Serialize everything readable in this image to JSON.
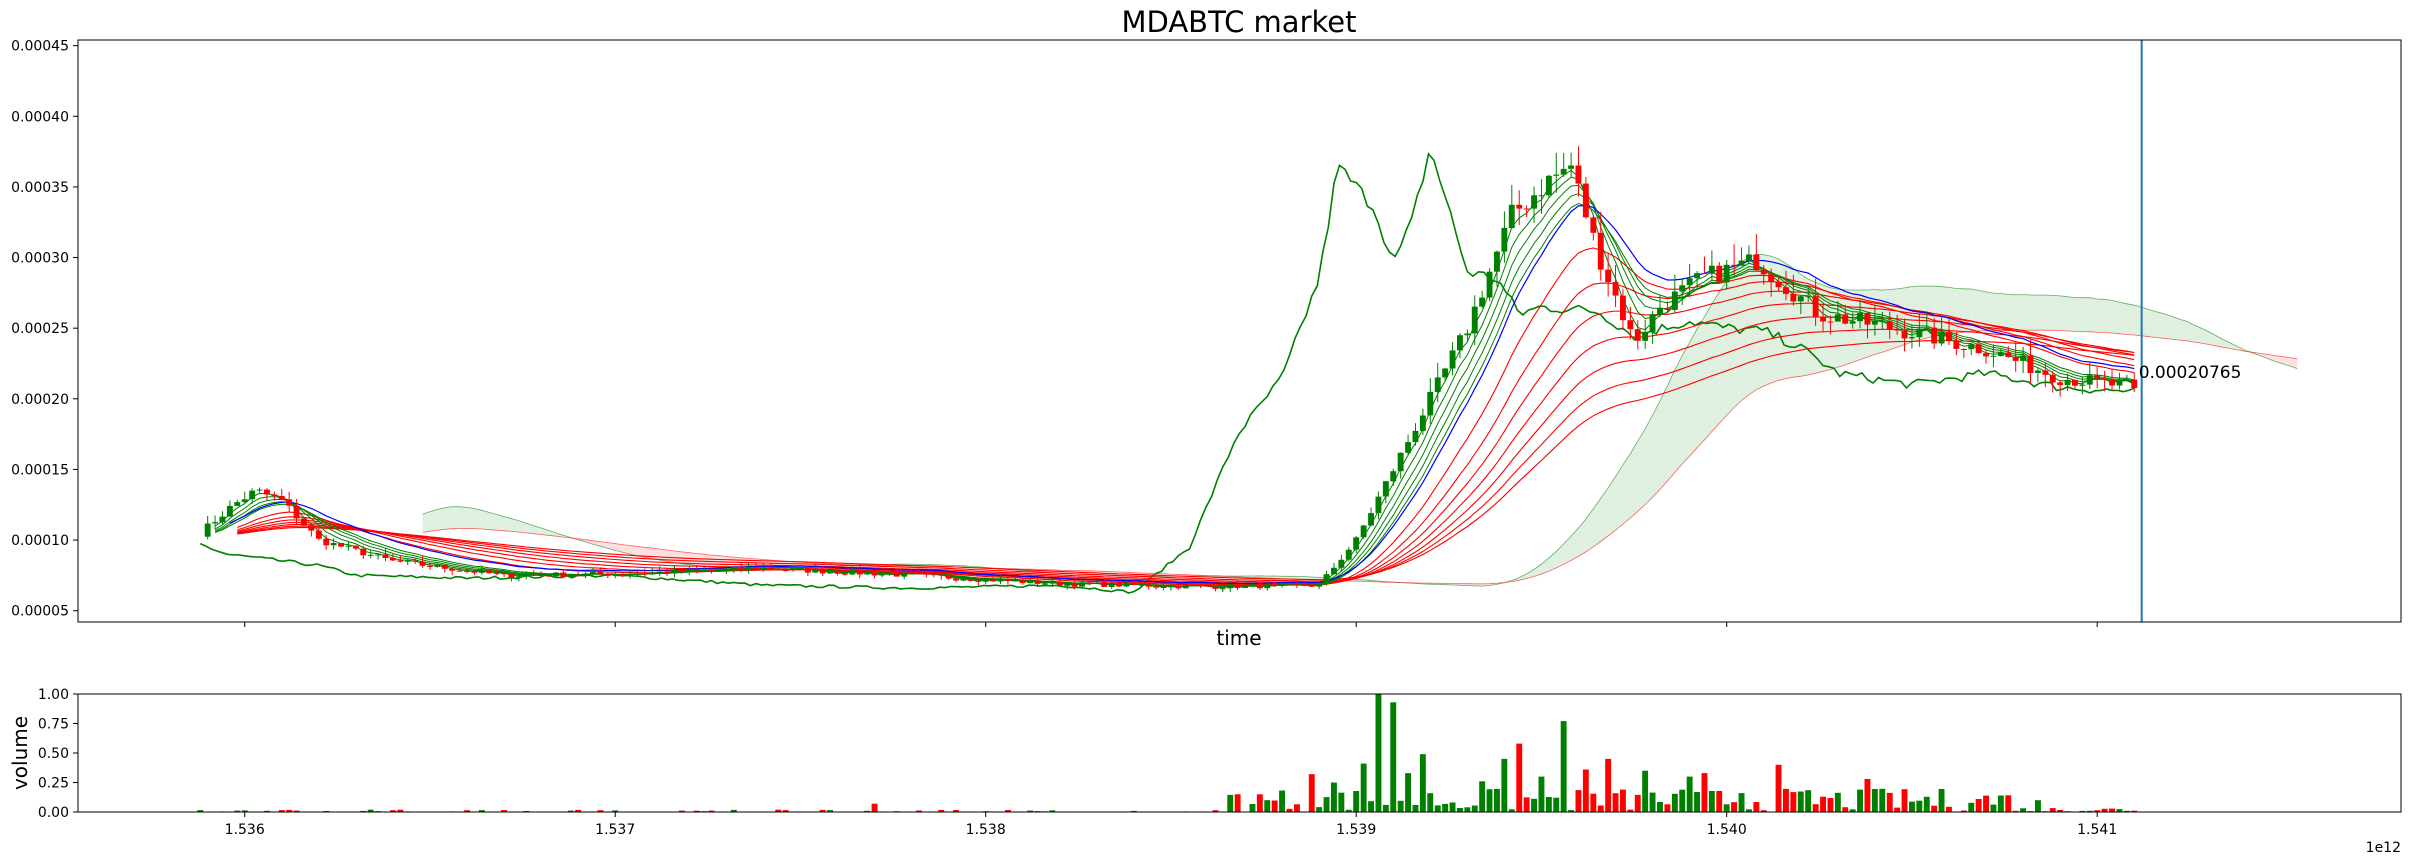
{
  "chart_data": [
    {
      "type": "candlestick",
      "title": "MDABTC market",
      "xlabel": "time",
      "ylabel": "",
      "xlim": [
        1535550000000,
        1541820000000
      ],
      "ylim": [
        4.2e-05,
        0.000454
      ],
      "x_ticks": [
        1536000000000,
        1537000000000,
        1538000000000,
        1539000000000,
        1540000000000,
        1541000000000
      ],
      "y_ticks": [
        5e-05,
        0.0001,
        0.00015,
        0.0002,
        0.00025,
        0.0003,
        0.00035,
        0.0004,
        0.00045
      ],
      "y_tick_labels": [
        "0.00005",
        "0.00010",
        "0.00015",
        "0.00020",
        "0.00025",
        "0.00030",
        "0.00035",
        "0.00040",
        "0.00045"
      ],
      "last_price_label": "0.00020765",
      "last_price": 0.00020765,
      "current_time_marker": 1541120000000,
      "colors": {
        "up": "#008000",
        "down": "#ff0000",
        "short_ma": "#0000ff",
        "marker": "#1f77b4",
        "cloud_up": "#cce6cc",
        "cloud_down": "#ffcccc"
      },
      "price_keypoints": {
        "t": [
          1535880000000,
          1535970000000,
          1536030000000,
          1536100000000,
          1536200000000,
          1536400000000,
          1536700000000,
          1537000000000,
          1537400000000,
          1537800000000,
          1538200000000,
          1538600000000,
          1538900000000,
          1539000000000,
          1539150000000,
          1539300000000,
          1539420000000,
          1539520000000,
          1539580000000,
          1539650000000,
          1539750000000,
          1539820000000,
          1539930000000,
          1540080000000,
          1540250000000,
          1540450000000,
          1540700000000,
          1540900000000,
          1541100000000
        ],
        "p": [
          0.000105,
          0.000125,
          0.000135,
          0.000128,
          0.0001,
          8.5e-05,
          7.5e-05,
          7.6e-05,
          8e-05,
          7.5e-05,
          6.9e-05,
          6.7e-05,
          6.8e-05,
          0.0001,
          0.000175,
          0.00025,
          0.00033,
          0.000355,
          0.000365,
          0.000305,
          0.00024,
          0.000265,
          0.000285,
          0.000298,
          0.00026,
          0.00025,
          0.000235,
          0.000215,
          0.000208
        ]
      },
      "lagging_line": {
        "t": [
          1535880000000,
          1535950000000,
          1536200000000,
          1536300000000,
          1536600000000,
          1537000000000,
          1537400000000,
          1537800000000,
          1538000000000,
          1538200000000,
          1538400000000,
          1538550000000,
          1538680000000,
          1538800000000,
          1538900000000,
          1538950000000,
          1539050000000,
          1539100000000,
          1539150000000,
          1539200000000,
          1539300000000,
          1539380000000,
          1539440000000,
          1539500000000,
          1539650000000,
          1539750000000,
          1539900000000,
          1540000000000,
          1540100000000,
          1540200000000,
          1540300000000,
          1540500000000,
          1540700000000,
          1540900000000,
          1541100000000
        ],
        "p": [
          9.7e-05,
          9e-05,
          8.2e-05,
          7.5e-05,
          7.3e-05,
          7.5e-05,
          6.8e-05,
          6.6e-05,
          6.7e-05,
          6.8e-05,
          6.3e-05,
          9.5e-05,
          0.000175,
          0.000215,
          0.000285,
          0.000365,
          0.000335,
          0.000295,
          0.000325,
          0.000378,
          0.00029,
          0.000285,
          0.00026,
          0.000265,
          0.000262,
          0.000245,
          0.000255,
          0.00025,
          0.000248,
          0.000236,
          0.000218,
          0.00021,
          0.000218,
          0.000208,
          0.000205
        ]
      }
    },
    {
      "type": "bar",
      "xlabel": "",
      "ylabel": "volume",
      "ylim": [
        0,
        1.0
      ],
      "y_ticks": [
        0,
        0.25,
        0.5,
        0.75,
        1.0
      ],
      "y_tick_labels": [
        "0.00",
        "0.25",
        "0.50",
        "0.75",
        "1.00"
      ],
      "x_ticks": [
        1536000000000,
        1537000000000,
        1538000000000,
        1539000000000,
        1540000000000,
        1541000000000
      ],
      "x_tick_labels": [
        "1.536",
        "1.537",
        "1.538",
        "1.539",
        "1.540",
        "1.541"
      ],
      "x_offset_label": "1e12",
      "spikes": [
        {
          "t": 1537700000000,
          "v": 0.07
        },
        {
          "t": 1538680000000,
          "v": 0.15
        },
        {
          "t": 1538750000000,
          "v": 0.1
        },
        {
          "t": 1538870000000,
          "v": 0.32
        },
        {
          "t": 1538940000000,
          "v": 0.25
        },
        {
          "t": 1539010000000,
          "v": 0.41
        },
        {
          "t": 1539060000000,
          "v": 1.0
        },
        {
          "t": 1539090000000,
          "v": 0.93
        },
        {
          "t": 1539130000000,
          "v": 0.33
        },
        {
          "t": 1539170000000,
          "v": 0.49
        },
        {
          "t": 1539330000000,
          "v": 0.26
        },
        {
          "t": 1539390000000,
          "v": 0.45
        },
        {
          "t": 1539440000000,
          "v": 0.58
        },
        {
          "t": 1539490000000,
          "v": 0.3
        },
        {
          "t": 1539550000000,
          "v": 0.77
        },
        {
          "t": 1539610000000,
          "v": 0.36
        },
        {
          "t": 1539680000000,
          "v": 0.45
        },
        {
          "t": 1539780000000,
          "v": 0.35
        },
        {
          "t": 1539900000000,
          "v": 0.3
        },
        {
          "t": 1539940000000,
          "v": 0.33
        },
        {
          "t": 1540030000000,
          "v": 0.16
        },
        {
          "t": 1540130000000,
          "v": 0.4
        },
        {
          "t": 1540350000000,
          "v": 0.19
        },
        {
          "t": 1540380000000,
          "v": 0.28
        },
        {
          "t": 1540670000000,
          "v": 0.11
        },
        {
          "t": 1540830000000,
          "v": 0.1
        }
      ]
    }
  ]
}
